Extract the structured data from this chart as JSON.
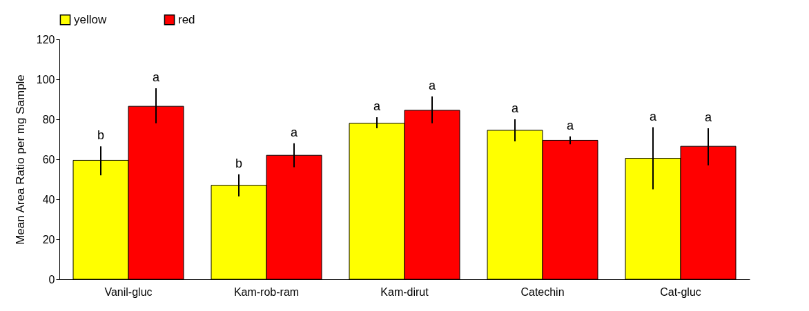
{
  "chart_data": {
    "type": "bar",
    "ylabel": "Mean Area Ratio per mg Sample",
    "categories": [
      "Vanil-gluc",
      "Kam-rob-ram",
      "Kam-dirut",
      "Catechin",
      "Cat-gluc"
    ],
    "series": [
      {
        "name": "yellow",
        "color": "#ffff00",
        "values": [
          59.5,
          47,
          78,
          74.5,
          60.5
        ],
        "errors": [
          [
            52,
            66.5
          ],
          [
            41.5,
            52.5
          ],
          [
            75.5,
            81
          ],
          [
            69,
            80
          ],
          [
            45,
            76
          ]
        ]
      },
      {
        "name": "red",
        "color": "#ff0000",
        "values": [
          86.5,
          62,
          84.5,
          69.5,
          66.5
        ],
        "errors": [
          [
            78,
            95.5
          ],
          [
            56,
            68
          ],
          [
            78,
            91.5
          ],
          [
            67.5,
            71.5
          ],
          [
            57,
            75.5
          ]
        ]
      }
    ],
    "annotations": [
      "b",
      "a",
      "b",
      "a",
      "a",
      "a",
      "a",
      "a",
      "a",
      "a"
    ],
    "ylim": [
      0,
      120
    ],
    "yticks": [
      0,
      20,
      40,
      60,
      80,
      100,
      120
    ],
    "grid": false,
    "legend": "top"
  }
}
